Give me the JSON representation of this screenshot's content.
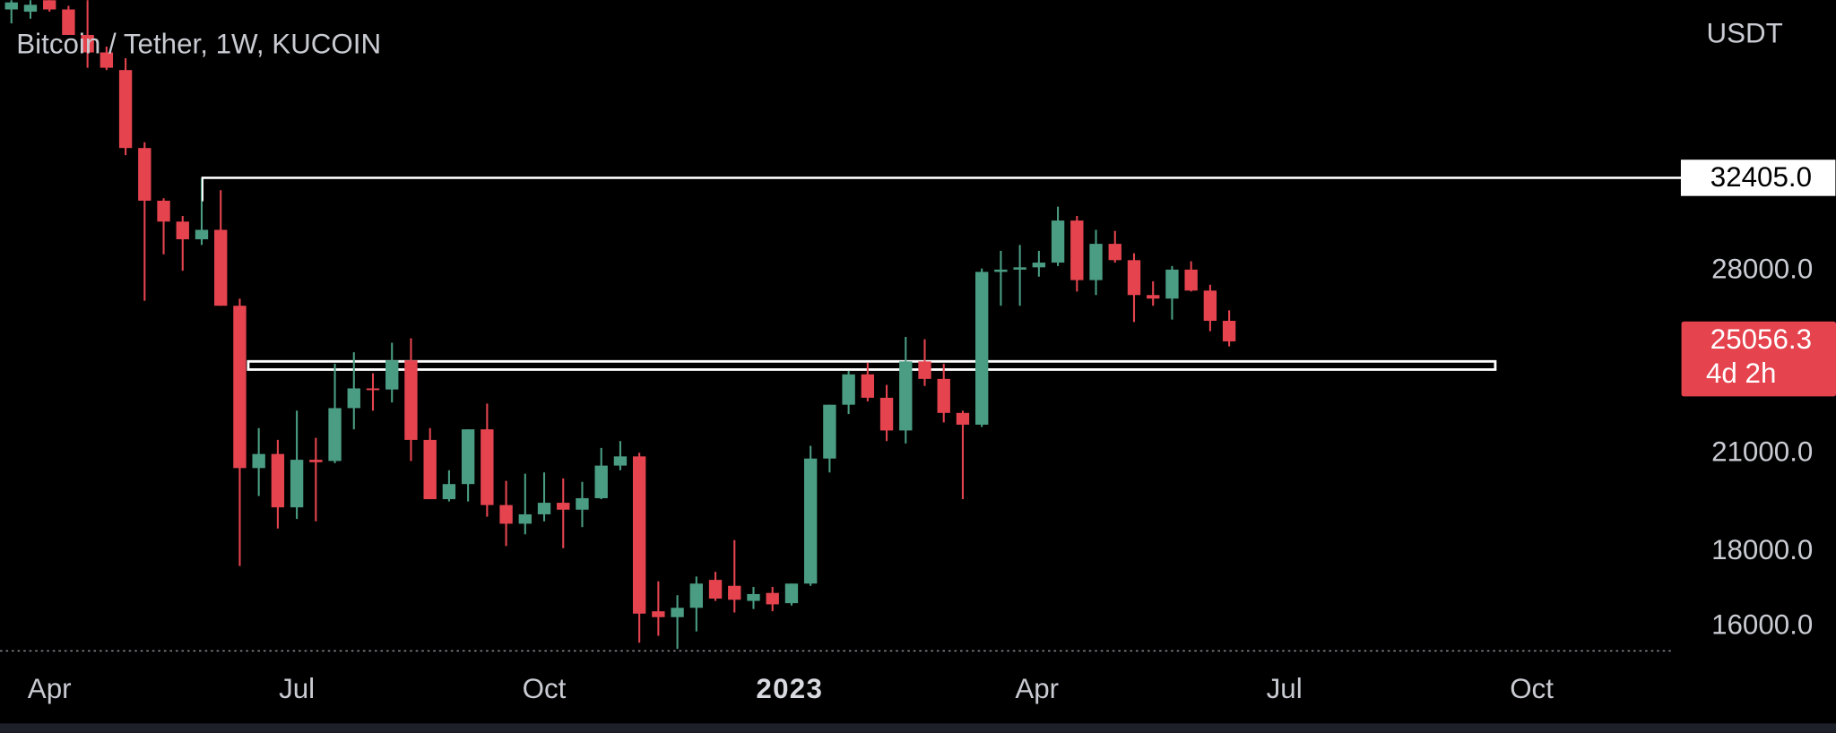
{
  "chart_data": {
    "type": "candlestick",
    "title": "Bitcoin / Tether, 1W, KUCOIN",
    "currency": "USDT",
    "countdown": "4d 2h",
    "log_scale": true,
    "up_color": "#4a9d83",
    "down_color": "#e5444f",
    "categories": [
      null,
      null,
      null,
      null,
      null,
      null,
      null,
      null,
      null,
      null,
      null,
      null,
      null,
      null,
      null,
      null,
      null,
      null,
      null,
      null,
      null,
      null,
      null,
      null,
      null,
      null,
      null,
      null,
      null,
      null,
      null,
      null,
      null,
      null,
      null,
      null,
      null,
      null,
      null,
      null,
      null,
      null,
      null,
      null,
      null,
      null,
      null,
      null,
      null,
      null,
      null,
      null,
      null,
      null,
      null,
      null,
      null,
      null,
      null,
      null,
      null,
      null,
      null,
      null,
      null
    ],
    "open": [
      42230,
      42080,
      42850,
      42230,
      40570,
      39470,
      38390,
      33960,
      31260,
      30250,
      29420,
      29860,
      26500,
      20530,
      20990,
      19300,
      20800,
      20760,
      22560,
      23270,
      23230,
      24320,
      21460,
      19550,
      20020,
      21820,
      19370,
      18810,
      19090,
      19440,
      19230,
      19580,
      20610,
      20910,
      16390,
      16240,
      16480,
      17220,
      17060,
      16660,
      16870,
      16600,
      17120,
      20840,
      22680,
      23790,
      22930,
      21780,
      24280,
      23620,
      22390,
      21980,
      27950,
      28050,
      28150,
      28360,
      30300,
      27590,
      29210,
      28470,
      26950,
      26800,
      28050,
      27140,
      25880
    ],
    "high": [
      42850,
      42850,
      42850,
      42470,
      42850,
      39830,
      39110,
      34270,
      31380,
      30520,
      32370,
      31780,
      26800,
      21860,
      21460,
      22470,
      21530,
      24190,
      24630,
      23830,
      25000,
      25180,
      21860,
      20460,
      21820,
      22720,
      20120,
      20350,
      20390,
      20200,
      20090,
      21190,
      21420,
      21030,
      17180,
      16810,
      17310,
      17440,
      18330,
      17030,
      17030,
      17120,
      21260,
      22680,
      23920,
      24230,
      23400,
      25230,
      25140,
      24190,
      22470,
      28100,
      28890,
      29160,
      28890,
      30970,
      30520,
      29860,
      29810,
      28780,
      27540,
      28210,
      28420,
      27390,
      26310
    ],
    "low": [
      41310,
      41620,
      42080,
      40570,
      38530,
      38390,
      33580,
      26710,
      28730,
      28000,
      29160,
      26500,
      17600,
      19650,
      18670,
      18950,
      18880,
      20690,
      21820,
      22470,
      22760,
      20760,
      19550,
      19480,
      19480,
      19020,
      18160,
      18500,
      18880,
      18100,
      18710,
      19550,
      20460,
      15600,
      15770,
      15450,
      15880,
      16660,
      16360,
      16450,
      16390,
      16540,
      17060,
      20390,
      22350,
      22800,
      21420,
      21340,
      23360,
      22060,
      19550,
      21900,
      26500,
      26500,
      27740,
      28210,
      27100,
      26950,
      28360,
      25830,
      26500,
      25930,
      27100,
      25460,
      24860
    ],
    "close": [
      42700,
      42540,
      42230,
      40570,
      39470,
      38530,
      33960,
      31260,
      30250,
      29420,
      29860,
      26500,
      20530,
      20990,
      19300,
      20800,
      20720,
      22560,
      23270,
      23230,
      24320,
      21460,
      19550,
      20020,
      21820,
      19370,
      18810,
      19090,
      19440,
      19230,
      19580,
      20610,
      20910,
      16330,
      16240,
      16480,
      17120,
      16720,
      16690,
      16840,
      16570,
      17120,
      20840,
      22680,
      23790,
      22930,
      21780,
      24280,
      23620,
      22390,
      21980,
      27950,
      28050,
      28150,
      28360,
      30300,
      27590,
      29210,
      28470,
      26950,
      26800,
      28050,
      27140,
      25880,
      25056.3
    ],
    "ylim": [
      15400,
      42850
    ],
    "yticks": [
      {
        "value": 16000,
        "label": "16000.0"
      },
      {
        "value": 18000,
        "label": "18000.0"
      },
      {
        "value": 21000,
        "label": "21000.0"
      },
      {
        "value": 28000,
        "label": "28000.0"
      }
    ],
    "xlim": [
      -0.6,
      87.4
    ],
    "xticks": [
      {
        "value": 2.0,
        "label": "Apr"
      },
      {
        "value": 15.0,
        "label": "Jul"
      },
      {
        "value": 28.0,
        "label": "Oct"
      },
      {
        "value": 40.9,
        "label": "2023"
      },
      {
        "value": 53.9,
        "label": "Apr"
      },
      {
        "value": 66.9,
        "label": "Jul"
      },
      {
        "value": 79.9,
        "label": "Oct"
      }
    ],
    "levels": [
      {
        "value": 32405,
        "label": "32405.0"
      }
    ],
    "zone": [
      23970,
      24280
    ]
  }
}
